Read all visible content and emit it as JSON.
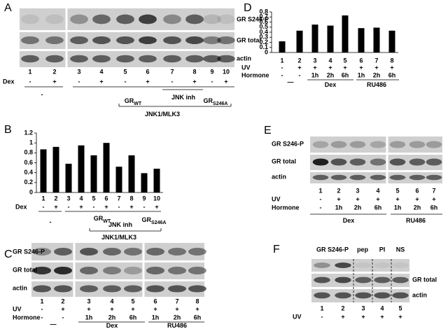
{
  "panels": {
    "a": {
      "label": "A",
      "bands": [
        "GR S246-P",
        "GR total",
        "actin"
      ],
      "lanes": [
        "1",
        "2",
        "3",
        "4",
        "5",
        "6",
        "7",
        "8",
        "9",
        "10"
      ],
      "rows": [
        {
          "name": "Dex",
          "values": [
            "-",
            "+",
            "-",
            "+",
            "-",
            "+",
            "-",
            "+",
            "-",
            "+"
          ]
        }
      ],
      "groups": [
        {
          "text": "-"
        },
        {
          "text": "GR",
          "sub": "WT"
        },
        {
          "text": "JNK inh"
        },
        {
          "text": "GR",
          "sub": "S246A"
        },
        {
          "text": "JNK1/MLK3"
        }
      ]
    },
    "b": {
      "label": "B",
      "chart_data": {
        "type": "bar",
        "categories": [
          "1",
          "2",
          "3",
          "4",
          "5",
          "6",
          "7",
          "8",
          "9",
          "10"
        ],
        "values": [
          0.87,
          0.92,
          0.58,
          0.95,
          0.75,
          1.0,
          0.52,
          0.75,
          0.39,
          0.48
        ],
        "color": "#000000",
        "ylim": [
          0,
          1.2
        ],
        "yticks": [
          0,
          0.2,
          0.4,
          0.6,
          0.8,
          1,
          1.2
        ]
      },
      "rows": [
        {
          "name": "Dex",
          "values": [
            "-",
            "+",
            "-",
            "+",
            "-",
            "+",
            "-",
            "+",
            "-",
            "+"
          ]
        }
      ],
      "groups": [
        {
          "text": "-"
        },
        {
          "text": "GR",
          "sub": "WT"
        },
        {
          "text": "JNK inh"
        },
        {
          "text": "GR",
          "sub": "S246A"
        },
        {
          "text": "JNK1/MLK3"
        }
      ]
    },
    "c": {
      "label": "C",
      "bands": [
        "GR S246-P",
        "GR total",
        "actin"
      ],
      "lanes": [
        "1",
        "2",
        "3",
        "4",
        "5",
        "6",
        "7",
        "8"
      ],
      "rows": [
        {
          "name": "UV",
          "values": [
            "-",
            "+",
            "+",
            "+",
            "+",
            "+",
            "+",
            "+"
          ]
        },
        {
          "name": "Hormone",
          "values": [
            "-",
            "-",
            "1h",
            "2h",
            "6h",
            "1h",
            "2h",
            "6h"
          ]
        }
      ],
      "groups": [
        {
          "text": "—"
        },
        {
          "text": "Dex"
        },
        {
          "text": "RU486"
        }
      ]
    },
    "d": {
      "label": "D",
      "chart_data": {
        "type": "bar",
        "categories": [
          "1",
          "2",
          "3",
          "4",
          "5",
          "6",
          "7",
          "8"
        ],
        "values": [
          0.22,
          0.43,
          0.55,
          0.53,
          0.73,
          0.48,
          0.49,
          0.43
        ],
        "color": "#000000",
        "ylim": [
          0,
          0.8
        ],
        "yticks": [
          0,
          0.1,
          0.2,
          0.3,
          0.4,
          0.5,
          0.6,
          0.7,
          0.8
        ]
      },
      "rows": [
        {
          "name": "UV",
          "values": [
            "-",
            "+",
            "+",
            "+",
            "+",
            "+",
            "+",
            "+"
          ]
        },
        {
          "name": "Hormone",
          "values": [
            "-",
            "-",
            "1h",
            "2h",
            "6h",
            "1h",
            "2h",
            "6h"
          ]
        }
      ],
      "groups": [
        {
          "text": "—"
        },
        {
          "text": "Dex"
        },
        {
          "text": "RU486"
        }
      ]
    },
    "e": {
      "label": "E",
      "bands": [
        "GR S246-P",
        "GR total",
        "actin"
      ],
      "lanes": [
        "1",
        "2",
        "3",
        "4",
        "5",
        "6",
        "7"
      ],
      "rows": [
        {
          "name": "UV",
          "values": [
            "-",
            "+",
            "+",
            "+",
            "+",
            "+",
            "+"
          ]
        },
        {
          "name": "Hormone",
          "values": [
            "-",
            "1h",
            "2h",
            "6h",
            "1h",
            "2h",
            "6h"
          ]
        }
      ],
      "groups": [
        {
          "text": "Dex"
        },
        {
          "text": "RU486"
        }
      ]
    },
    "f": {
      "label": "F",
      "top": [
        "GR S246-P",
        "pep",
        "PI",
        "NS"
      ],
      "bands": [
        "GR total",
        "actin"
      ],
      "lanes": [
        "1",
        "2",
        "3",
        "4",
        "5"
      ],
      "rows": [
        {
          "name": "UV",
          "values": [
            "-",
            "+",
            "+",
            "+",
            "+"
          ]
        }
      ]
    }
  }
}
